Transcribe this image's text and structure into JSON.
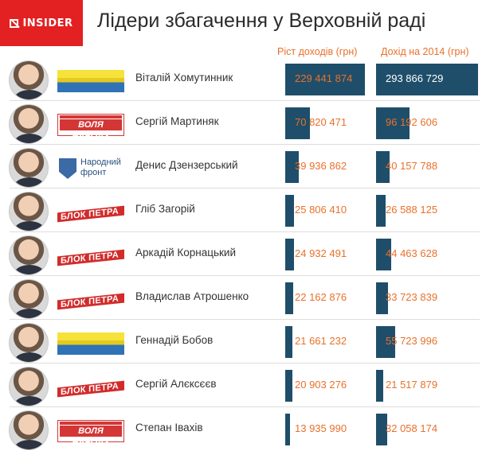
{
  "header": {
    "logo_text": "INSIDER",
    "title": "Лідери збагачення у Верховній раді",
    "brand_color": "#e32022"
  },
  "chart_data": {
    "type": "bar",
    "title": "Лідери збагачення у Верховній раді",
    "series": [
      {
        "name": "Ріст доходів (грн)",
        "values": [
          229441874,
          70820471,
          39936862,
          25806410,
          24932491,
          22162876,
          21661232,
          20903276,
          13935990
        ]
      },
      {
        "name": "Дохід на 2014 (грн)",
        "values": [
          293866729,
          96192606,
          40157788,
          26588125,
          44463628,
          33723839,
          55723996,
          21517879,
          32058174
        ]
      }
    ],
    "categories": [
      "Віталій Хомутинник",
      "Сергій Мартиняк",
      "Денис Дзензерський",
      "Гліб Загорій",
      "Аркадій Корнацький",
      "Владислав Атрошенко",
      "Геннадій Бобов",
      "Сергій Алєксєєв",
      "Степан Івахів"
    ],
    "value_labels_1": [
      "229 441 874",
      "70 820 471",
      "39 936 862",
      "25 806 410",
      "24 932 491",
      "22 162 876",
      "21 661 232",
      "20 903 276",
      "13 935 990"
    ],
    "value_labels_2": [
      "293 866 729",
      "96 192 606",
      "40 157 788",
      "26 588 125",
      "44 463 628",
      "33 723 839",
      "55 723 996",
      "21 517 879",
      "32 058 174"
    ],
    "bar_color": "#1f4e6a",
    "label_color": "#e8712b"
  },
  "rows": [
    {
      "party": "nf",
      "party_text": ""
    },
    {
      "party": "vn",
      "party_text": "ВОЛЯ НАРОДУ"
    },
    {
      "party": "np",
      "party_text": "Народний фронт"
    },
    {
      "party": "bp",
      "party_text": "БЛОК ПЕТРА ПОРОШЕНКА"
    },
    {
      "party": "bp",
      "party_text": "БЛОК ПЕТРА ПОРОШЕНКА"
    },
    {
      "party": "bp",
      "party_text": "БЛОК ПЕТРА ПОРОШЕНКА"
    },
    {
      "party": "nf",
      "party_text": ""
    },
    {
      "party": "bp",
      "party_text": "БЛОК ПЕТРА ПОРОШЕНКА"
    },
    {
      "party": "vn",
      "party_text": "ВОЛЯ НАРОДУ"
    }
  ]
}
